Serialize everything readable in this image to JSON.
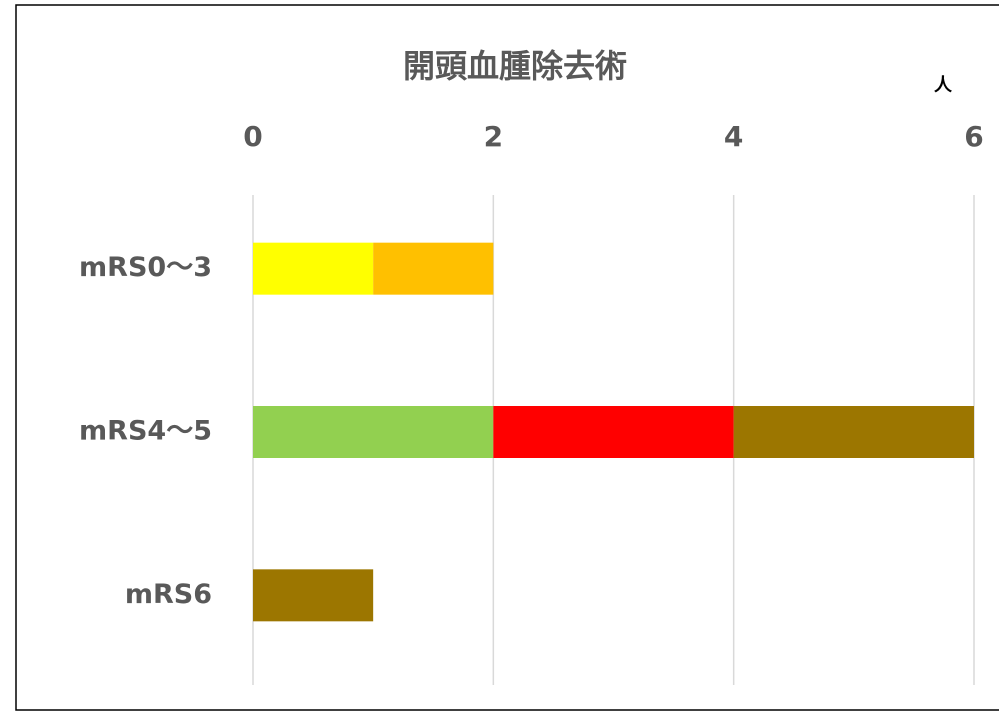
{
  "chart_data": {
    "type": "bar",
    "orientation": "horizontal",
    "stacked": true,
    "title": "開頭血腫除去術",
    "x_label": "人",
    "categories": [
      "mRS0〜3",
      "mRS4〜5",
      "mRS6"
    ],
    "series": [
      {
        "color": "#ffff00",
        "values": [
          1,
          0,
          0
        ]
      },
      {
        "color": "#ffc000",
        "values": [
          1,
          0,
          0
        ]
      },
      {
        "color": "#92d050",
        "values": [
          0,
          2,
          0
        ]
      },
      {
        "color": "#ff0000",
        "values": [
          0,
          2,
          0
        ]
      },
      {
        "color": "#9c7600",
        "values": [
          0,
          2,
          1
        ]
      }
    ],
    "xlim": [
      0,
      6
    ],
    "xticks": [
      0,
      2,
      4,
      6
    ],
    "grid": true
  }
}
